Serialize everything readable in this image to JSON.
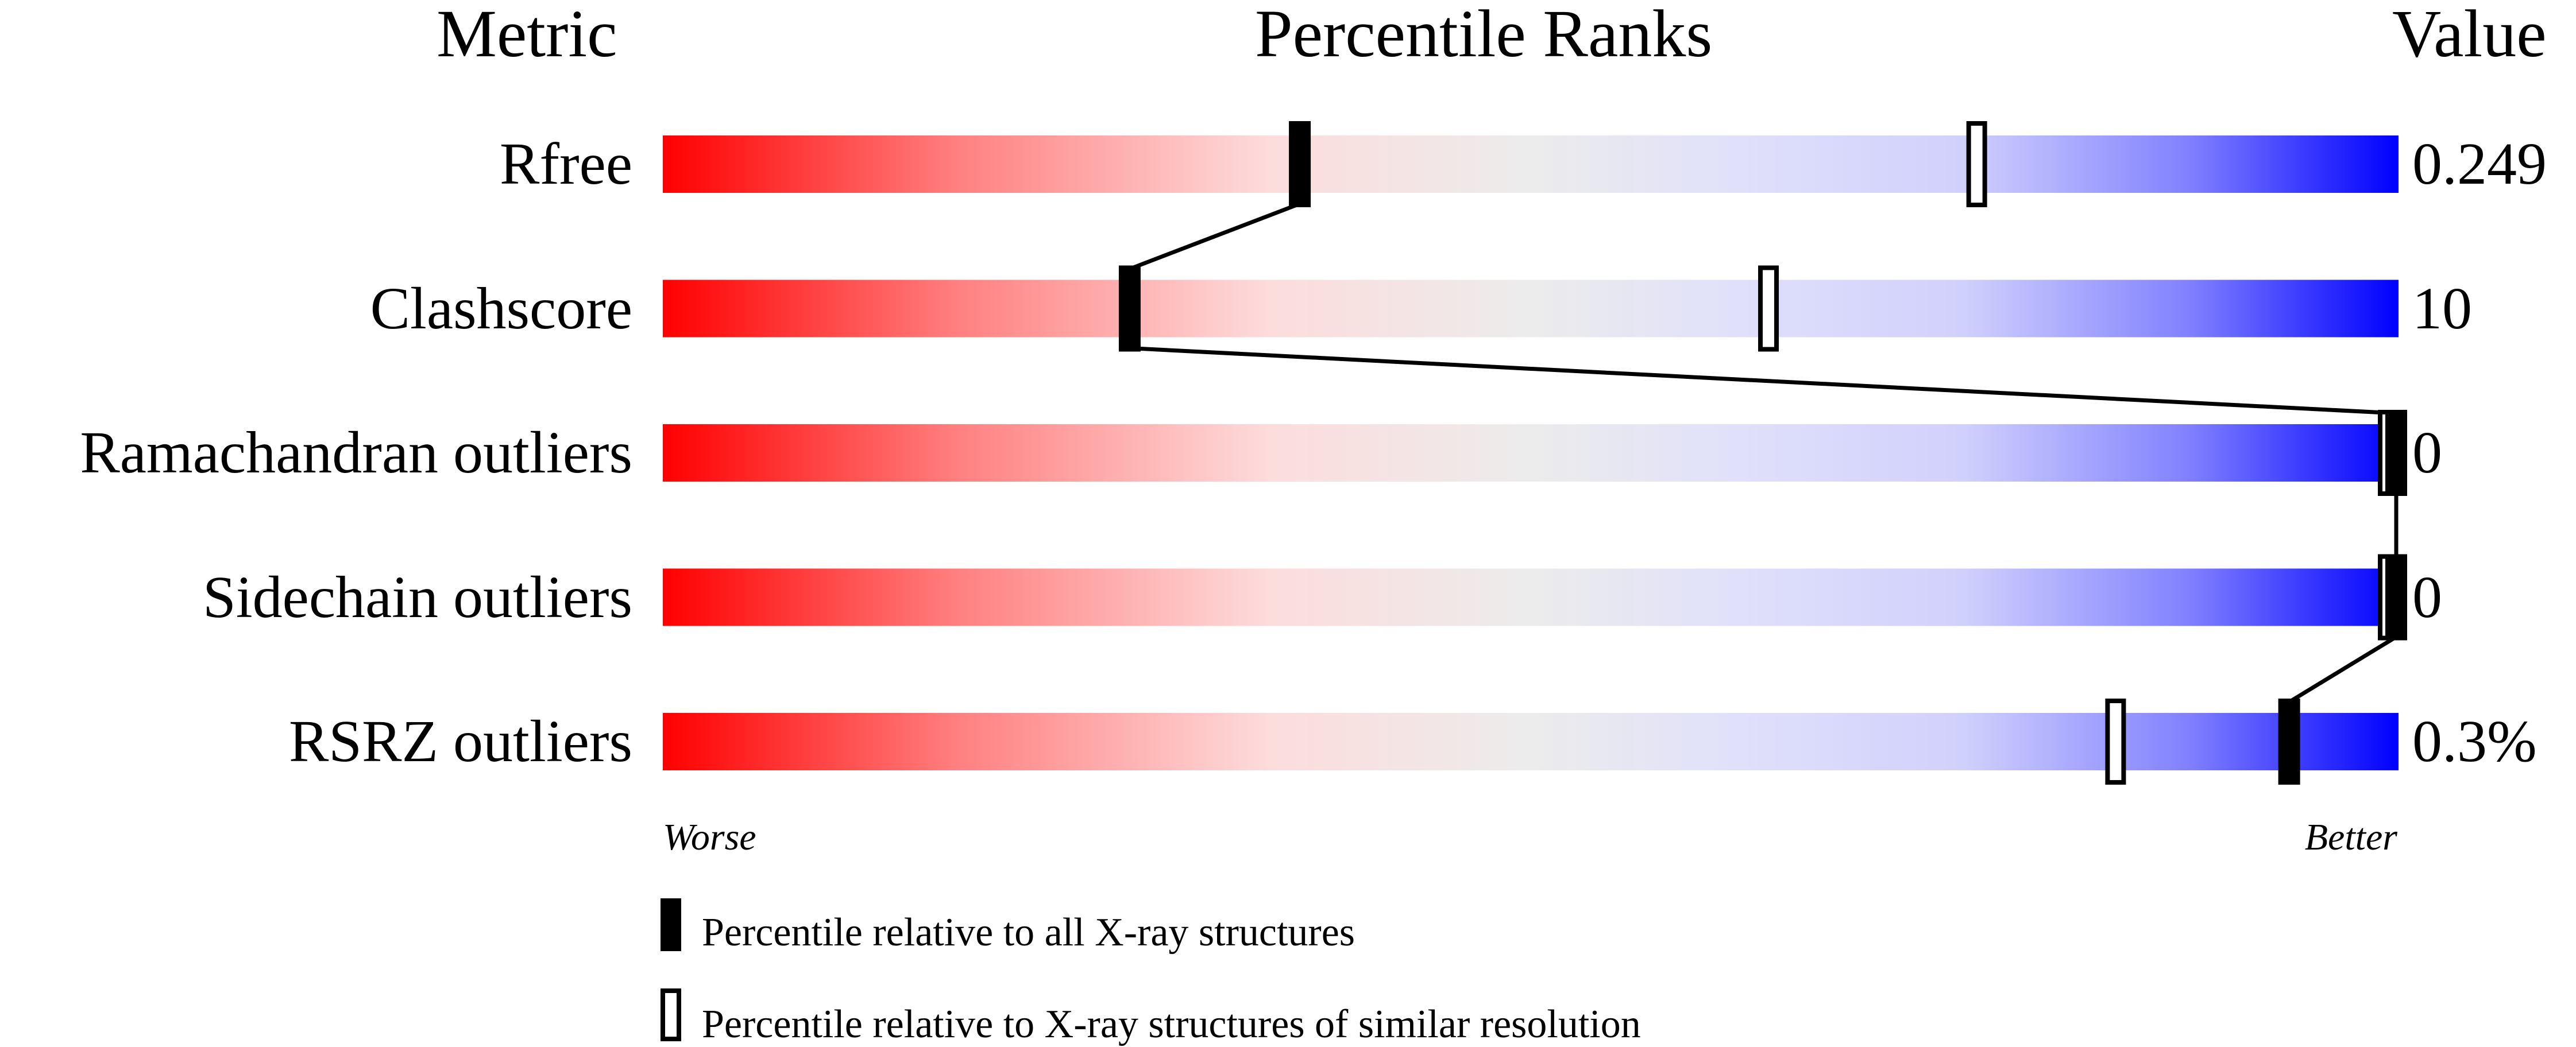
{
  "chart_data": {
    "type": "percentile-slider",
    "headers": {
      "metric": "Metric",
      "percentile": "Percentile Ranks",
      "value": "Value"
    },
    "xlim": [
      0,
      100
    ],
    "rows": [
      {
        "metric": "Rfree",
        "value": "0.249",
        "percentile_all": 36.7,
        "percentile_similar": 75.7
      },
      {
        "metric": "Clashscore",
        "value": "10",
        "percentile_all": 26.9,
        "percentile_similar": 63.7
      },
      {
        "metric": "Ramachandran outliers",
        "value": "0",
        "percentile_all": 100,
        "percentile_similar": 100
      },
      {
        "metric": "Sidechain outliers",
        "value": "0",
        "percentile_all": 100,
        "percentile_similar": 100
      },
      {
        "metric": "RSRZ outliers",
        "value": "0.3%",
        "percentile_all": 93.7,
        "percentile_similar": 83.7
      }
    ],
    "axis": {
      "left": "Worse",
      "right": "Better"
    },
    "legend": [
      {
        "marker": "filled",
        "label": "Percentile relative to all X-ray structures"
      },
      {
        "marker": "open",
        "label": "Percentile relative to X-ray structures of similar resolution"
      }
    ],
    "colors": {
      "worse": "#ff0000",
      "middle": "#ececec",
      "better": "#0000ff",
      "marker": "#000000"
    }
  }
}
